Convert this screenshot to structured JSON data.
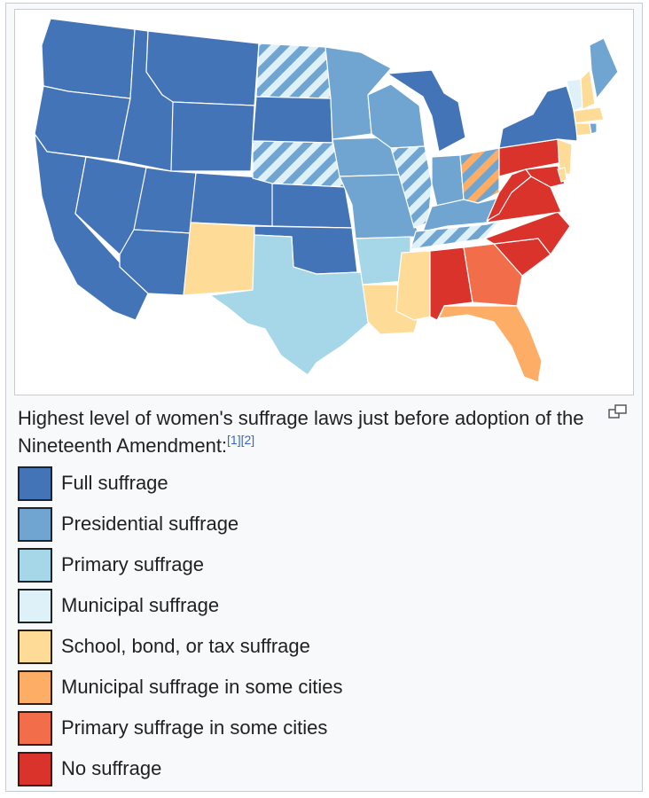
{
  "caption": {
    "text": "Highest level of women's suffrage laws just before adoption of the Nineteenth Amendment:",
    "refs": [
      "[1]",
      "[2]"
    ]
  },
  "colors": {
    "full": "#4374b7",
    "presidential": "#6fa5d0",
    "primary": "#a6d7e8",
    "municipal": "#def1f8",
    "school": "#fedb97",
    "municipal_some": "#fdad66",
    "primary_some": "#f26e4b",
    "none": "#d9332c"
  },
  "legend": [
    {
      "key": "full",
      "label": "Full suffrage",
      "color": "#4374b7"
    },
    {
      "key": "presidential",
      "label": "Presidential suffrage",
      "color": "#6fa5d0"
    },
    {
      "key": "primary",
      "label": "Primary suffrage",
      "color": "#a6d7e8"
    },
    {
      "key": "municipal",
      "label": "Municipal suffrage",
      "color": "#def1f8"
    },
    {
      "key": "school",
      "label": "School, bond, or tax suffrage",
      "color": "#fedb97"
    },
    {
      "key": "municipal_some",
      "label": "Municipal suffrage in some cities",
      "color": "#fdad66"
    },
    {
      "key": "primary_some",
      "label": "Primary suffrage in some cities",
      "color": "#f26e4b"
    },
    {
      "key": "none",
      "label": "No suffrage",
      "color": "#d9332c"
    }
  ],
  "map": {
    "icons": [
      "magnify-clip-icon"
    ]
  }
}
